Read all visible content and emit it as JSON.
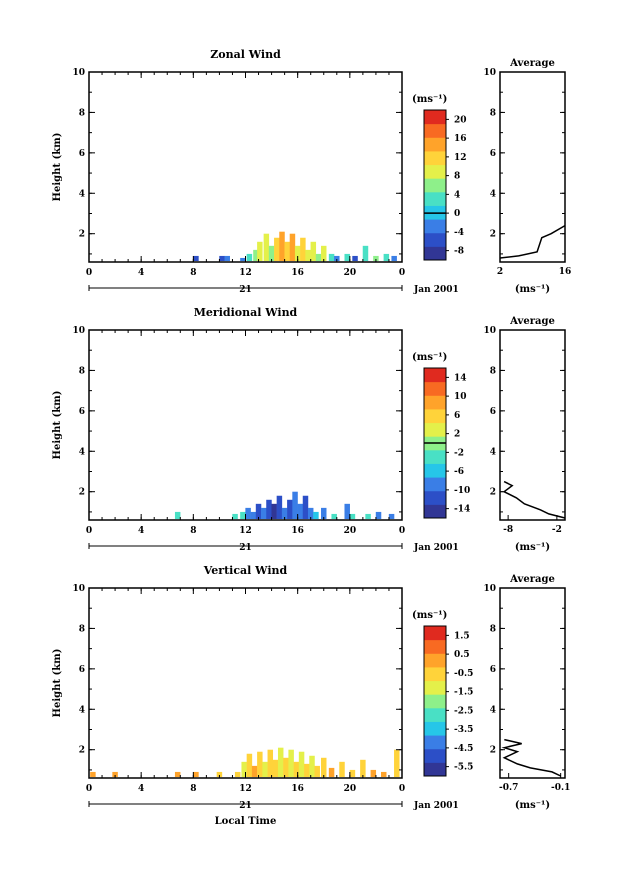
{
  "chart_data": [
    {
      "type": "heatmap",
      "title": "Zonal Wind",
      "ylabel": "Height (km)",
      "xlabel": "",
      "x_ticks": [
        "0",
        "4",
        "8",
        "12",
        "16",
        "20",
        "0"
      ],
      "y_ticks": [
        "2",
        "4",
        "6",
        "8",
        "10"
      ],
      "ylim": [
        0.6,
        10
      ],
      "xlim": [
        0,
        24
      ],
      "day_label": "21",
      "date_label": "Jan 2001",
      "colorbar": {
        "unit": "(ms⁻¹)",
        "ticks": [
          "-8",
          "-4",
          "0",
          "4",
          "8",
          "12",
          "16",
          "20"
        ],
        "min": -10,
        "max": 22,
        "zero_line": 0
      },
      "cells": [
        {
          "t": 8.2,
          "h": 0.9,
          "v": -6
        },
        {
          "t": 10.2,
          "h": 0.9,
          "v": -6
        },
        {
          "t": 10.6,
          "h": 0.9,
          "v": -4
        },
        {
          "t": 11.8,
          "h": 0.8,
          "v": -2
        },
        {
          "t": 12.3,
          "h": 1.0,
          "v": 2
        },
        {
          "t": 12.8,
          "h": 1.2,
          "v": 6
        },
        {
          "t": 13.1,
          "h": 1.6,
          "v": 8
        },
        {
          "t": 13.6,
          "h": 2.0,
          "v": 10
        },
        {
          "t": 14.0,
          "h": 1.4,
          "v": 6
        },
        {
          "t": 14.4,
          "h": 1.8,
          "v": 12
        },
        {
          "t": 14.8,
          "h": 2.1,
          "v": 14
        },
        {
          "t": 15.2,
          "h": 1.6,
          "v": 12
        },
        {
          "t": 15.6,
          "h": 2.0,
          "v": 14
        },
        {
          "t": 16.0,
          "h": 1.4,
          "v": 10
        },
        {
          "t": 16.4,
          "h": 1.8,
          "v": 12
        },
        {
          "t": 16.8,
          "h": 1.2,
          "v": 8
        },
        {
          "t": 17.2,
          "h": 1.6,
          "v": 10
        },
        {
          "t": 17.6,
          "h": 1.0,
          "v": 6
        },
        {
          "t": 18.0,
          "h": 1.4,
          "v": 8
        },
        {
          "t": 18.6,
          "h": 1.0,
          "v": 4
        },
        {
          "t": 19.0,
          "h": 0.9,
          "v": -4
        },
        {
          "t": 19.8,
          "h": 1.0,
          "v": 2
        },
        {
          "t": 20.4,
          "h": 0.9,
          "v": -6
        },
        {
          "t": 21.2,
          "h": 1.4,
          "v": 4
        },
        {
          "t": 22.0,
          "h": 0.9,
          "v": 6
        },
        {
          "t": 22.8,
          "h": 1.0,
          "v": 4
        },
        {
          "t": 23.4,
          "h": 0.9,
          "v": -2
        }
      ],
      "average": {
        "xlabel": "(ms⁻¹)",
        "title": "Average",
        "x_ticks": [
          "2",
          "16"
        ],
        "xlim": [
          2,
          16
        ],
        "profile": [
          [
            2,
            0.8
          ],
          [
            6,
            0.9
          ],
          [
            10,
            1.1
          ],
          [
            11,
            1.8
          ],
          [
            13,
            2.0
          ],
          [
            16,
            2.4
          ]
        ]
      }
    },
    {
      "type": "heatmap",
      "title": "Meridional Wind",
      "ylabel": "Height (km)",
      "xlabel": "",
      "x_ticks": [
        "0",
        "4",
        "8",
        "12",
        "16",
        "20",
        "0"
      ],
      "y_ticks": [
        "2",
        "4",
        "6",
        "8",
        "10"
      ],
      "ylim": [
        0.6,
        10
      ],
      "xlim": [
        0,
        24
      ],
      "day_label": "21",
      "date_label": "Jan 2001",
      "colorbar": {
        "unit": "(ms⁻¹)",
        "ticks": [
          "-14",
          "-10",
          "-6",
          "-2",
          "2",
          "6",
          "10",
          "14"
        ],
        "min": -16,
        "max": 16,
        "zero_line": 0
      },
      "cells": [
        {
          "t": 6.8,
          "h": 1.0,
          "v": -4
        },
        {
          "t": 11.2,
          "h": 0.9,
          "v": -4
        },
        {
          "t": 11.8,
          "h": 1.0,
          "v": -2
        },
        {
          "t": 12.2,
          "h": 1.2,
          "v": -8
        },
        {
          "t": 12.6,
          "h": 1.0,
          "v": -10
        },
        {
          "t": 13.0,
          "h": 1.4,
          "v": -12
        },
        {
          "t": 13.4,
          "h": 1.2,
          "v": -10
        },
        {
          "t": 13.8,
          "h": 1.6,
          "v": -12
        },
        {
          "t": 14.2,
          "h": 1.4,
          "v": -14
        },
        {
          "t": 14.6,
          "h": 1.8,
          "v": -12
        },
        {
          "t": 15.0,
          "h": 1.2,
          "v": -10
        },
        {
          "t": 15.4,
          "h": 1.6,
          "v": -12
        },
        {
          "t": 15.8,
          "h": 2.0,
          "v": -10
        },
        {
          "t": 16.2,
          "h": 1.4,
          "v": -8
        },
        {
          "t": 16.6,
          "h": 1.8,
          "v": -12
        },
        {
          "t": 17.0,
          "h": 1.2,
          "v": -8
        },
        {
          "t": 17.4,
          "h": 1.0,
          "v": -6
        },
        {
          "t": 18.0,
          "h": 1.2,
          "v": -10
        },
        {
          "t": 18.8,
          "h": 0.9,
          "v": -2
        },
        {
          "t": 19.8,
          "h": 1.4,
          "v": -8
        },
        {
          "t": 20.2,
          "h": 0.9,
          "v": -2
        },
        {
          "t": 21.4,
          "h": 0.9,
          "v": -4
        },
        {
          "t": 22.2,
          "h": 1.0,
          "v": -10
        },
        {
          "t": 23.2,
          "h": 0.9,
          "v": -8
        }
      ],
      "average": {
        "xlabel": "(ms⁻¹)",
        "title": "Average",
        "x_ticks": [
          "-8",
          "-2"
        ],
        "xlim": [
          -9,
          -1
        ],
        "profile": [
          [
            -1,
            0.7
          ],
          [
            -3,
            0.9
          ],
          [
            -4,
            1.1
          ],
          [
            -6,
            1.4
          ],
          [
            -7,
            1.7
          ],
          [
            -8.5,
            2.0
          ],
          [
            -7.5,
            2.3
          ],
          [
            -8.5,
            2.5
          ]
        ]
      }
    },
    {
      "type": "heatmap",
      "title": "Vertical Wind",
      "ylabel": "Height (km)",
      "xlabel": "Local Time",
      "x_ticks": [
        "0",
        "4",
        "8",
        "12",
        "16",
        "20",
        "0"
      ],
      "y_ticks": [
        "2",
        "4",
        "6",
        "8",
        "10"
      ],
      "ylim": [
        0.6,
        10
      ],
      "xlim": [
        0,
        24
      ],
      "day_label": "21",
      "date_label": "Jan 2001",
      "colorbar": {
        "unit": "(ms⁻¹)",
        "ticks": [
          "-5.5",
          "-4.5",
          "-3.5",
          "-2.5",
          "-1.5",
          "-0.5",
          "0.5",
          "1.5"
        ],
        "min": -6,
        "max": 2,
        "zero_line": null
      },
      "cells": [
        {
          "t": 0.3,
          "h": 0.9,
          "v": 0.2
        },
        {
          "t": 2.0,
          "h": 0.9,
          "v": 0.0
        },
        {
          "t": 6.8,
          "h": 0.9,
          "v": 0.2
        },
        {
          "t": 8.2,
          "h": 0.9,
          "v": 0.0
        },
        {
          "t": 10.0,
          "h": 0.9,
          "v": -0.2
        },
        {
          "t": 11.4,
          "h": 0.9,
          "v": -0.8
        },
        {
          "t": 11.9,
          "h": 1.4,
          "v": -1.2
        },
        {
          "t": 12.3,
          "h": 1.8,
          "v": -0.6
        },
        {
          "t": 12.7,
          "h": 1.2,
          "v": 0.4
        },
        {
          "t": 13.1,
          "h": 1.9,
          "v": -0.8
        },
        {
          "t": 13.5,
          "h": 1.4,
          "v": -1.4
        },
        {
          "t": 13.9,
          "h": 2.0,
          "v": -0.4
        },
        {
          "t": 14.3,
          "h": 1.5,
          "v": -0.9
        },
        {
          "t": 14.7,
          "h": 2.1,
          "v": -1.6
        },
        {
          "t": 15.1,
          "h": 1.6,
          "v": -0.6
        },
        {
          "t": 15.5,
          "h": 2.0,
          "v": -1.2
        },
        {
          "t": 15.9,
          "h": 1.4,
          "v": -0.5
        },
        {
          "t": 16.3,
          "h": 1.9,
          "v": -1.0
        },
        {
          "t": 16.7,
          "h": 1.3,
          "v": -0.4
        },
        {
          "t": 17.1,
          "h": 1.7,
          "v": -1.3
        },
        {
          "t": 17.5,
          "h": 1.2,
          "v": -0.7
        },
        {
          "t": 18.0,
          "h": 1.6,
          "v": -0.3
        },
        {
          "t": 18.6,
          "h": 1.1,
          "v": 0.0
        },
        {
          "t": 19.4,
          "h": 1.4,
          "v": -0.4
        },
        {
          "t": 20.2,
          "h": 1.0,
          "v": -0.2
        },
        {
          "t": 21.0,
          "h": 1.5,
          "v": -0.6
        },
        {
          "t": 21.8,
          "h": 1.0,
          "v": 0.2
        },
        {
          "t": 22.6,
          "h": 0.9,
          "v": 0.0
        },
        {
          "t": 23.6,
          "h": 2.0,
          "v": -0.5
        }
      ],
      "average": {
        "xlabel": "(ms⁻¹)",
        "title": "Average",
        "x_ticks": [
          "-0.7",
          "-0.1"
        ],
        "xlim": [
          -0.8,
          -0.05
        ],
        "profile": [
          [
            -0.1,
            0.7
          ],
          [
            -0.2,
            0.9
          ],
          [
            -0.45,
            1.1
          ],
          [
            -0.6,
            1.3
          ],
          [
            -0.75,
            1.6
          ],
          [
            -0.6,
            1.9
          ],
          [
            -0.75,
            2.1
          ],
          [
            -0.55,
            2.3
          ],
          [
            -0.75,
            2.5
          ]
        ]
      }
    }
  ]
}
